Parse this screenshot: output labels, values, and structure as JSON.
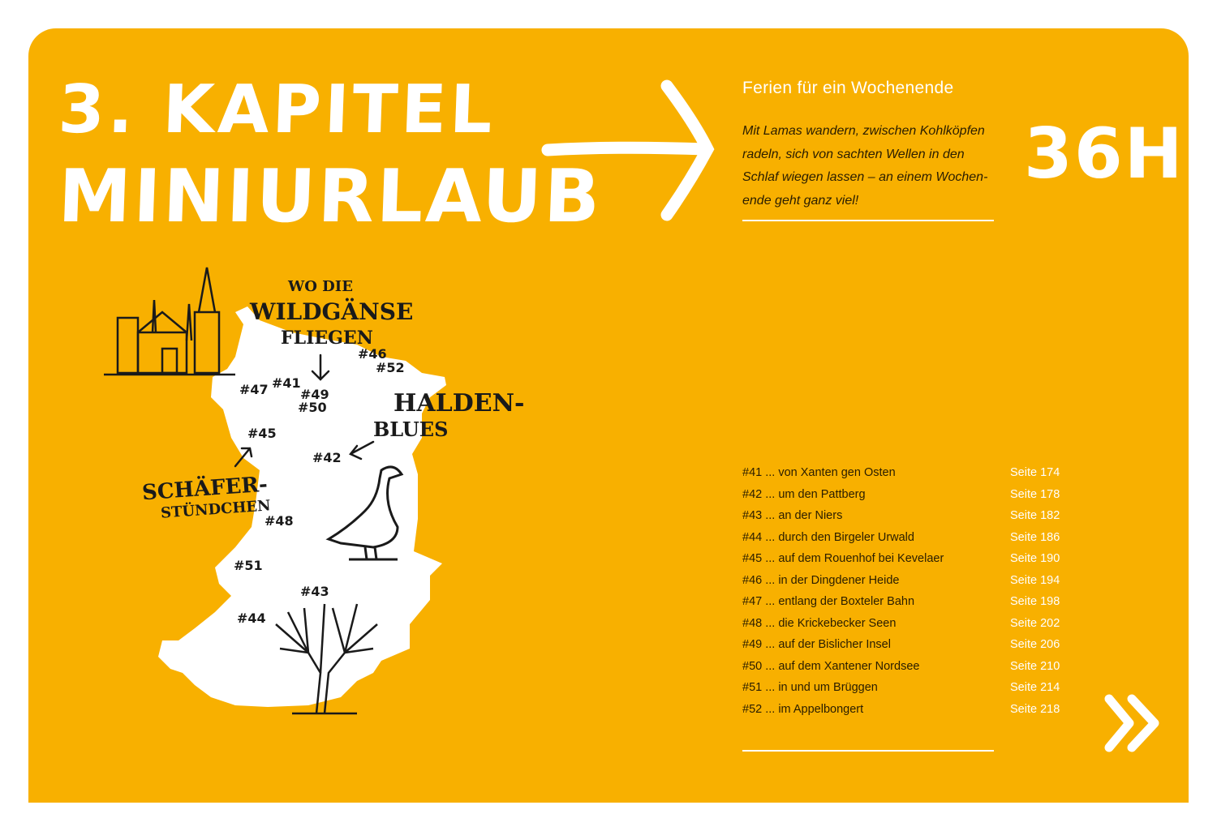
{
  "chapter": {
    "line1": "3. KAPITEL",
    "line2": "MINIURLAUB",
    "duration": "36H"
  },
  "subtitle": "Ferien für ein Wochenende",
  "intro": "Mit Lamas wandern, zwischen Kohlköpfen radeln, sich von sachten Wellen in den Schlaf wiegen lassen – an einem Wochen-ende geht ganz viel!",
  "colors": {
    "background": "#F8B000",
    "accent": "#FFFFFF",
    "text": "#2A1D00"
  },
  "map": {
    "callouts": {
      "wildgaense": [
        "WO DIE",
        "WILDGÄNSE",
        "FLIEGEN"
      ],
      "halden": [
        "HALDEN-",
        "BLUES"
      ],
      "schaefer": [
        "SCHÄFER-",
        "STÜNDCHEN"
      ]
    },
    "markers": [
      "#41",
      "#42",
      "#43",
      "#44",
      "#45",
      "#46",
      "#47",
      "#48",
      "#49",
      "#50",
      "#51",
      "#52"
    ]
  },
  "toc": [
    {
      "label": "#41 ... von Xanten gen Osten",
      "page": "Seite 174"
    },
    {
      "label": "#42 ... um den Pattberg",
      "page": "Seite 178"
    },
    {
      "label": "#43 ... an der Niers",
      "page": "Seite 182"
    },
    {
      "label": "#44 ... durch den Birgeler Urwald",
      "page": "Seite 186"
    },
    {
      "label": "#45 ... auf dem Rouenhof bei Kevelaer",
      "page": "Seite 190"
    },
    {
      "label": "#46 ... in der Dingdener Heide",
      "page": "Seite 194"
    },
    {
      "label": "#47 ... entlang der Boxteler Bahn",
      "page": "Seite 198"
    },
    {
      "label": "#48 ... die Krickebecker Seen",
      "page": "Seite 202"
    },
    {
      "label": "#49 ... auf der Bislicher Insel",
      "page": "Seite 206"
    },
    {
      "label": "#50 ... auf dem Xantener Nordsee",
      "page": "Seite 210"
    },
    {
      "label": "#51 ... in und um Brüggen",
      "page": "Seite 214"
    },
    {
      "label": "#52 ... im Appelbongert",
      "page": "Seite 218"
    }
  ],
  "icons": {
    "arrow": "arrow-right-icon",
    "next": "double-chevron-right-icon"
  }
}
